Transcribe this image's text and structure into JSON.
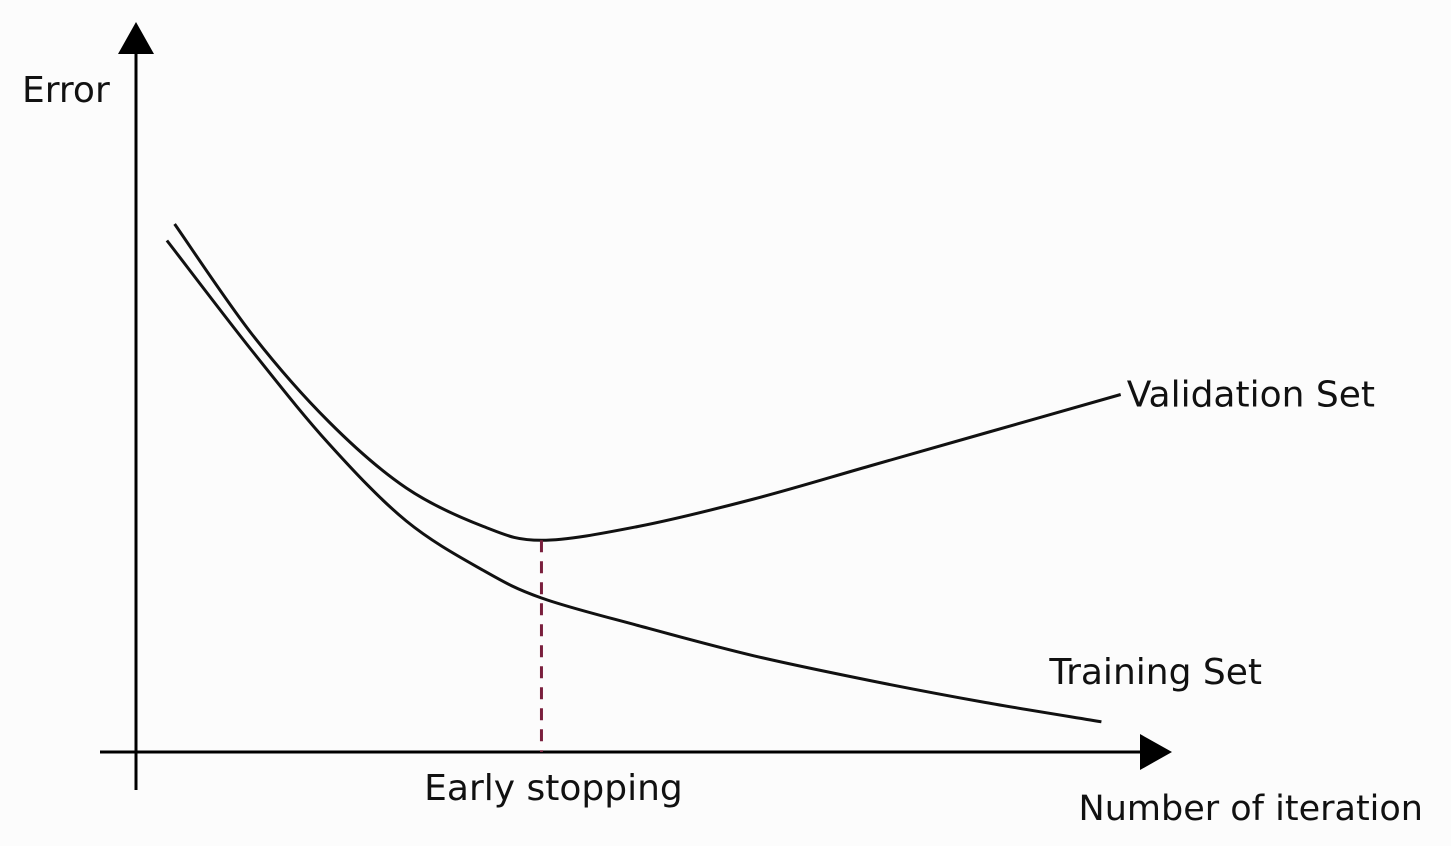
{
  "chart_data": {
    "type": "line",
    "title": "",
    "ylabel": "Error",
    "xlabel": "Number of iteration",
    "annotation": "Early stopping",
    "annotation_x": 10.5,
    "xlim": [
      0,
      26
    ],
    "ylim": [
      0,
      10
    ],
    "grid": false,
    "series": [
      {
        "name": "Validation Set",
        "x": [
          1,
          3,
          5,
          7,
          9,
          10.5,
          13,
          16,
          19,
          22,
          25.5
        ],
        "y": [
          9.6,
          7.6,
          6.0,
          4.8,
          4.1,
          3.85,
          4.1,
          4.6,
          5.2,
          5.8,
          6.5
        ]
      },
      {
        "name": "Training Set",
        "x": [
          0.8,
          3,
          5,
          7,
          9,
          10.5,
          13,
          16,
          19,
          22,
          25
        ],
        "y": [
          9.3,
          7.3,
          5.6,
          4.2,
          3.3,
          2.8,
          2.3,
          1.75,
          1.3,
          0.9,
          0.55
        ]
      }
    ],
    "colors": {
      "axis": "#000000",
      "line": "#111111",
      "marker": "#7a1f3d"
    }
  }
}
